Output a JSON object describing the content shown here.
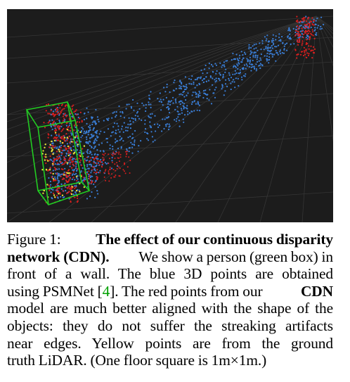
{
  "figure": {
    "image_description_icon": "point-cloud-visualization",
    "colors": {
      "background": "#1c1c1c",
      "grid": "#3a3a3a",
      "box": "#22cc22",
      "blue_points": "#3a7fd9",
      "red_points": "#d81e1e",
      "yellow_points": "#e8e23a"
    }
  },
  "caption": {
    "label": "Figure 1:",
    "title": "The effect of our continuous disparity",
    "title_cont": "network (CDN).",
    "s1": "We show a person (green box) in",
    "l3": "front of a wall.  The blue 3D points are obtained",
    "l4_a": "using PSMNet [",
    "cite": "4",
    "l4_b": "].  The red points from our",
    "cdn": "CDN",
    "l5": "model are much better aligned with the shape of the",
    "l6": "objects:  they do not suffer the streaking artifacts",
    "l7": "near edges.  Yellow points are from the ground",
    "l8": "truth LiDAR. (One floor square is 1m×1m.)"
  }
}
